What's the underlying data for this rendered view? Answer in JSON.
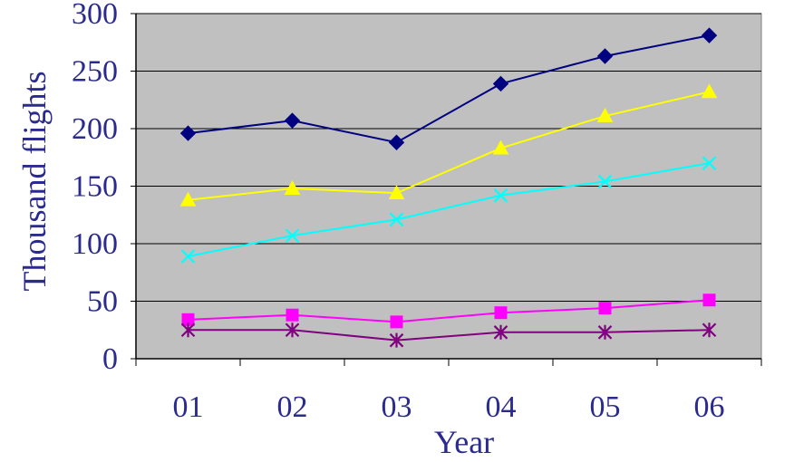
{
  "chart_data": {
    "type": "line",
    "title": "",
    "xlabel": "Year",
    "ylabel": "Thousand flights",
    "categories": [
      "01",
      "02",
      "03",
      "04",
      "05",
      "06"
    ],
    "ylim": [
      0,
      300
    ],
    "yticks": [
      "0",
      "50",
      "100",
      "150",
      "200",
      "250",
      "300"
    ],
    "grid": "horizontal",
    "legend": "none",
    "plot_background": "#c0c0c0",
    "series": [
      {
        "color": "#000080",
        "marker": "diamond",
        "values": [
          196,
          207,
          188,
          239,
          263,
          281
        ]
      },
      {
        "color": "#ffff00",
        "marker": "triangle",
        "values": [
          138,
          148,
          144,
          183,
          211,
          232
        ]
      },
      {
        "color": "#00ffff",
        "marker": "x",
        "values": [
          89,
          107,
          121,
          142,
          154,
          170
        ]
      },
      {
        "color": "#ff00ff",
        "marker": "square",
        "values": [
          34,
          38,
          32,
          40,
          44,
          51
        ]
      },
      {
        "color": "#800080",
        "marker": "asterisk",
        "values": [
          25,
          25,
          16,
          23,
          23,
          25
        ]
      }
    ]
  }
}
